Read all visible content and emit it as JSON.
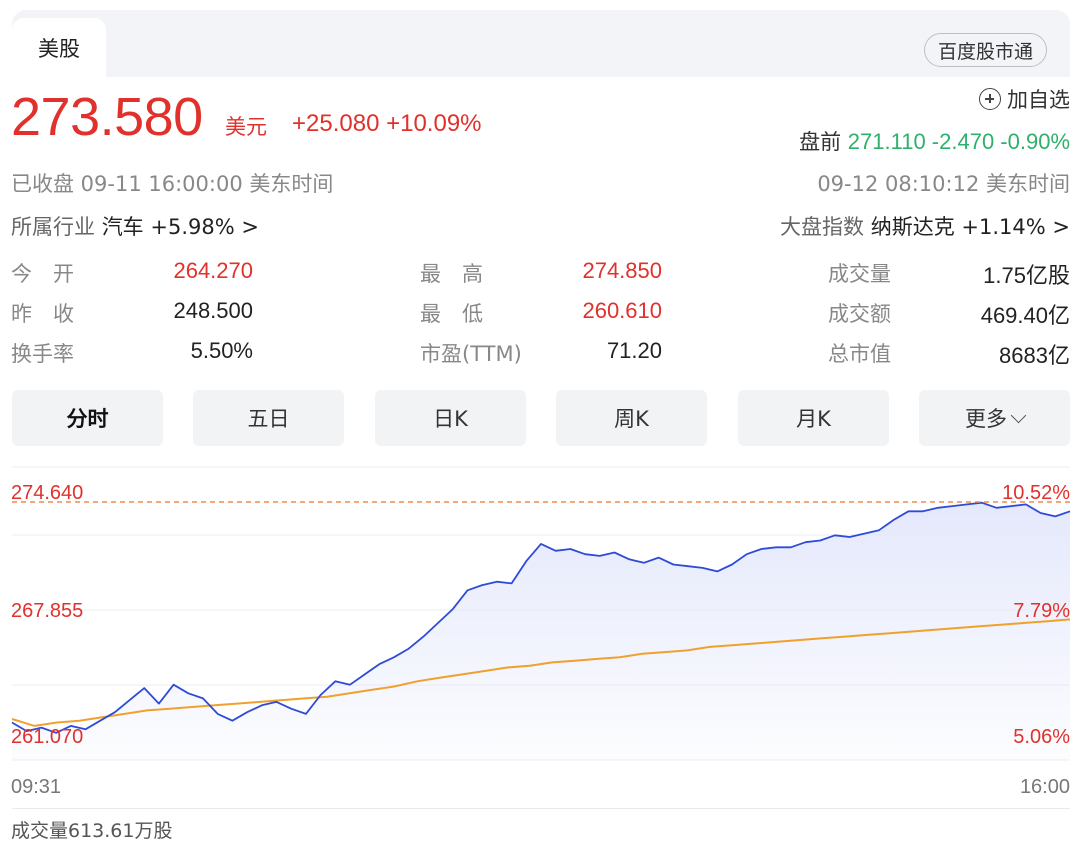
{
  "tabs": {
    "active": "美股",
    "baidu_btn": "百度股市通"
  },
  "quote": {
    "price": "273.580",
    "currency": "美元",
    "change": "+25.080 +10.09%",
    "status": "已收盘  09-11 16:00:00  美东时间"
  },
  "watchlist": {
    "label": "加自选"
  },
  "premarket": {
    "label": "盘前",
    "value": "271.110 -2.470 -0.90%",
    "time": "09-12 08:10:12  美东时间"
  },
  "industry": {
    "label": "所属行业",
    "name": "汽车",
    "change": "+5.98%",
    "arrow": ">"
  },
  "index": {
    "label": "大盘指数",
    "name": "纳斯达克",
    "change": "+1.14%",
    "arrow": ">"
  },
  "stats": {
    "open_label": "今　开",
    "open": "264.270",
    "high_label": "最　高",
    "high": "274.850",
    "volume_label": "成交量",
    "volume": "1.75亿股",
    "prev_label": "昨　收",
    "prev": "248.500",
    "low_label": "最　低",
    "low": "260.610",
    "amount_label": "成交额",
    "amount": "469.40亿",
    "turnover_label": "换手率",
    "turnover": "5.50%",
    "pe_label": "市盈(TTM)",
    "pe": "71.20",
    "mcap_label": "总市值",
    "mcap": "8683亿"
  },
  "period_tabs": [
    "分时",
    "五日",
    "日K",
    "周K",
    "月K",
    "更多"
  ],
  "chart": {
    "y_top": "274.640",
    "y_mid": "267.855",
    "y_bot": "261.070",
    "pct_top": "10.52%",
    "pct_mid": "7.79%",
    "pct_bot": "5.06%",
    "time_start": "09:31",
    "time_end": "16:00",
    "volume_label": "成交量613.61万股",
    "colors": {
      "price_line": "#2e4bd8",
      "avg_line": "#f0a02e",
      "ref_line": "#f08a4b",
      "fill": "#e3e7fb"
    }
  },
  "chart_data": {
    "type": "line",
    "x_range": [
      "09:31",
      "16:00"
    ],
    "ylim": [
      261.07,
      274.64
    ],
    "y_right_labels": [
      "10.52%",
      "7.79%",
      "5.06%"
    ],
    "series": [
      {
        "values": [
          261.8,
          261.3,
          261.5,
          261.2,
          261.6,
          261.4,
          261.9,
          262.4,
          263.1,
          263.8,
          262.9,
          264.0,
          263.5,
          263.2,
          262.3,
          261.9,
          262.4,
          262.8,
          263.0,
          262.6,
          262.3,
          263.4,
          264.2,
          264.0,
          264.6,
          265.2,
          265.6,
          266.1,
          266.8,
          267.6,
          268.4,
          269.5,
          269.8,
          270.0,
          269.9,
          271.2,
          272.2,
          271.8,
          271.9,
          271.6,
          271.5,
          271.7,
          271.3,
          271.1,
          271.4,
          271.0,
          270.9,
          270.8,
          270.6,
          271.0,
          271.6,
          271.9,
          272.0,
          272.0,
          272.3,
          272.4,
          272.7,
          272.6,
          272.8,
          273.0,
          273.6,
          274.1,
          274.1,
          274.3,
          274.4,
          274.5,
          274.6,
          274.3,
          274.4,
          274.5,
          274.0,
          273.8,
          274.1
        ]
      },
      {
        "values": [
          262.0,
          261.6,
          261.8,
          261.9,
          262.1,
          262.3,
          262.5,
          262.6,
          262.7,
          262.8,
          262.9,
          263.0,
          263.1,
          263.2,
          263.3,
          263.5,
          263.7,
          263.9,
          264.2,
          264.4,
          264.6,
          264.8,
          265.0,
          265.1,
          265.3,
          265.4,
          265.5,
          265.6,
          265.8,
          265.9,
          266.0,
          266.2,
          266.3,
          266.4,
          266.5,
          266.6,
          266.7,
          266.8,
          266.9,
          267.0,
          267.1,
          267.2,
          267.3,
          267.4,
          267.5,
          267.6,
          267.7,
          267.8
        ]
      }
    ],
    "reference_line": 274.64
  }
}
